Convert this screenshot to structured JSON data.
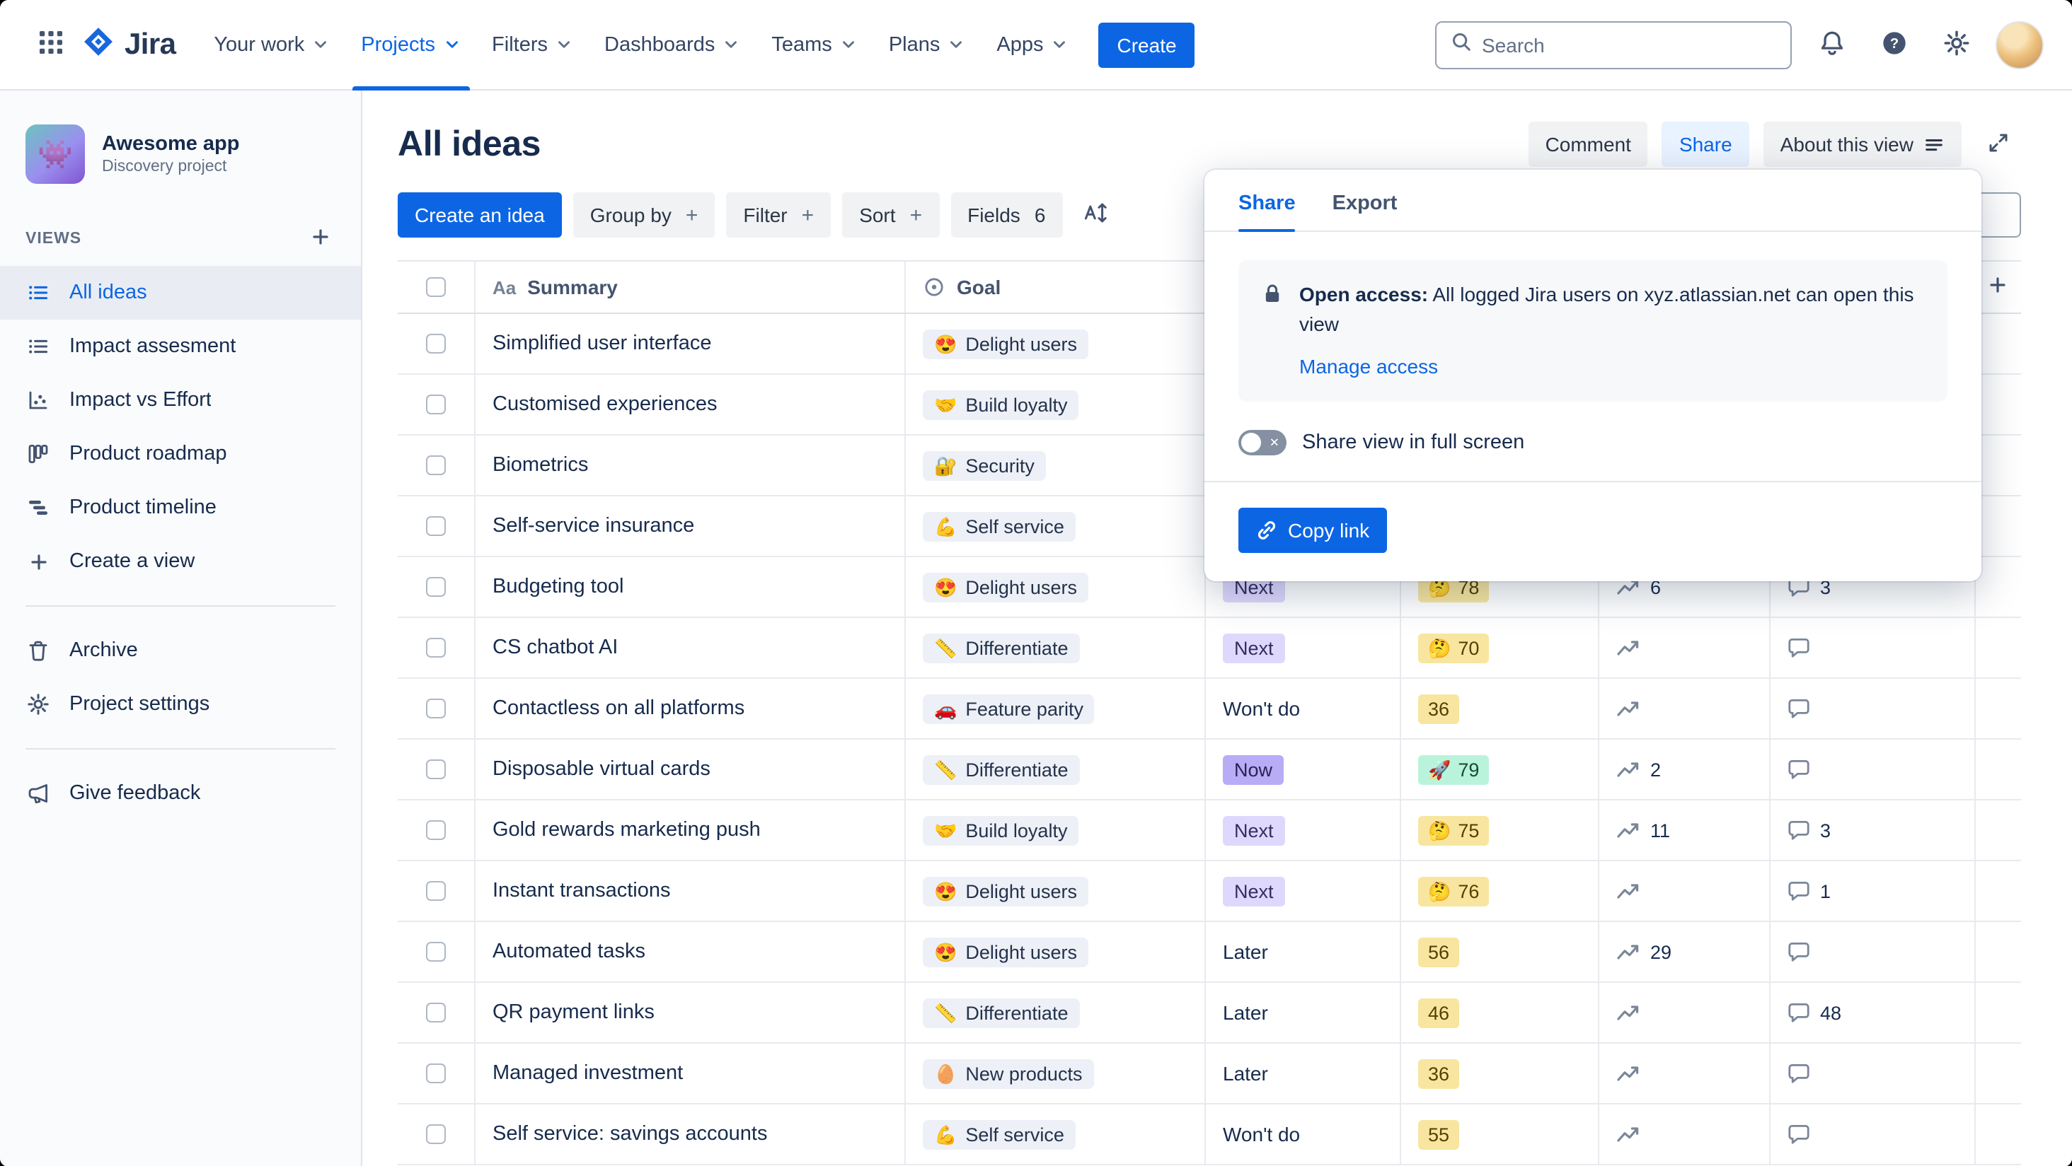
{
  "colors": {
    "brand_blue": "#0C66E4",
    "selected_view_bg": "#E9EDF3",
    "status_next_bg": "#DFD8FD",
    "status_now_bg": "#B8ACF6",
    "impact_yellow_bg": "#F8E6A0",
    "impact_green_bg": "#BAF3DB"
  },
  "nav": {
    "logo_text": "Jira",
    "items": [
      "Your work",
      "Projects",
      "Filters",
      "Dashboards",
      "Teams",
      "Plans",
      "Apps"
    ],
    "active_item": "Projects",
    "create_label": "Create",
    "search_placeholder": "Search"
  },
  "sidebar": {
    "project_name": "Awesome app",
    "project_type": "Discovery project",
    "project_emoji": "👾",
    "views_label": "VIEWS",
    "views": [
      {
        "label": "All ideas",
        "icon": "list",
        "selected": true
      },
      {
        "label": "Impact assesment",
        "icon": "list"
      },
      {
        "label": "Impact vs Effort",
        "icon": "scatter"
      },
      {
        "label": "Product roadmap",
        "icon": "board"
      },
      {
        "label": "Product timeline",
        "icon": "timeline"
      },
      {
        "label": "Create a view",
        "icon": "plus"
      }
    ],
    "tools": [
      {
        "label": "Archive",
        "icon": "trash"
      },
      {
        "label": "Project settings",
        "icon": "gear"
      }
    ],
    "footer": [
      {
        "label": "Give feedback",
        "icon": "megaphone"
      }
    ]
  },
  "page": {
    "title": "All ideas",
    "comment_label": "Comment",
    "share_label": "Share",
    "about_label": "About this view"
  },
  "toolbar": {
    "create_idea": "Create an idea",
    "group_by": "Group by",
    "filter": "Filter",
    "sort": "Sort",
    "fields": "Fields",
    "fields_count": "6",
    "plus": "+"
  },
  "share_popup": {
    "tabs": [
      "Share",
      "Export"
    ],
    "active_tab": "Share",
    "open_access_title": "Open access:",
    "open_access_text": "All logged Jira users on xyz.atlassian.net can open this view",
    "manage_access_label": "Manage access",
    "fullscreen_toggle_label": "Share view in full screen",
    "toggle_state": "off",
    "copy_link_label": "Copy link"
  },
  "table": {
    "summary_icon": "Aa",
    "columns": [
      {
        "label": "Summary"
      },
      {
        "label": "Goal"
      }
    ],
    "rows": [
      {
        "summary": "Simplified user interface",
        "goal_emoji": "😍",
        "goal": "Delight users",
        "metrics": false
      },
      {
        "summary": "Customised experiences",
        "goal_emoji": "🤝",
        "goal": "Build loyalty",
        "metrics": false
      },
      {
        "summary": "Biometrics",
        "goal_emoji": "🔐",
        "goal": "Security",
        "metrics": false
      },
      {
        "summary": "Self-service insurance",
        "goal_emoji": "💪",
        "goal": "Self service",
        "metrics": false
      },
      {
        "summary": "Budgeting tool",
        "goal_emoji": "😍",
        "goal": "Delight users",
        "status": "Next",
        "status_variant": "lilac",
        "impact": "78",
        "impact_emoji": "🤔",
        "impact_variant": "yellow",
        "trend": "6",
        "comments": "3",
        "metrics": true
      },
      {
        "summary": "CS chatbot AI",
        "goal_emoji": "📏",
        "goal": "Differentiate",
        "status": "Next",
        "status_variant": "lilac",
        "impact": "70",
        "impact_emoji": "🤔",
        "impact_variant": "yellow",
        "trend": "",
        "comments": "",
        "metrics": true
      },
      {
        "summary": "Contactless on all platforms",
        "goal_emoji": "🚗",
        "goal": "Feature parity",
        "status": "Won't do",
        "status_variant": "plain",
        "impact": "36",
        "impact_variant": "yellow",
        "trend": "",
        "comments": "",
        "metrics": true
      },
      {
        "summary": "Disposable virtual cards",
        "goal_emoji": "📏",
        "goal": "Differentiate",
        "status": "Now",
        "status_variant": "purple",
        "impact": "79",
        "impact_emoji": "🚀",
        "impact_variant": "green",
        "trend": "2",
        "comments": "",
        "metrics": true
      },
      {
        "summary": "Gold rewards marketing push",
        "goal_emoji": "🤝",
        "goal": "Build loyalty",
        "status": "Next",
        "status_variant": "lilac",
        "impact": "75",
        "impact_emoji": "🤔",
        "impact_variant": "yellow",
        "trend": "11",
        "comments": "3",
        "metrics": true
      },
      {
        "summary": "Instant transactions",
        "goal_emoji": "😍",
        "goal": "Delight users",
        "status": "Next",
        "status_variant": "lilac",
        "impact": "76",
        "impact_emoji": "🤔",
        "impact_variant": "yellow",
        "trend": "",
        "comments": "1",
        "metrics": true
      },
      {
        "summary": "Automated tasks",
        "goal_emoji": "😍",
        "goal": "Delight users",
        "status": "Later",
        "status_variant": "plain",
        "impact": "56",
        "impact_variant": "yellow",
        "trend": "29",
        "comments": "",
        "metrics": true
      },
      {
        "summary": "QR payment links",
        "goal_emoji": "📏",
        "goal": "Differentiate",
        "status": "Later",
        "status_variant": "plain",
        "impact": "46",
        "impact_variant": "yellow",
        "trend": "",
        "comments": "48",
        "metrics": true
      },
      {
        "summary": "Managed investment",
        "goal_emoji": "🥚",
        "goal": "New products",
        "status": "Later",
        "status_variant": "plain",
        "impact": "36",
        "impact_variant": "yellow",
        "trend": "",
        "comments": "",
        "metrics": true
      },
      {
        "summary": "Self service: savings accounts",
        "goal_emoji": "💪",
        "goal": "Self service",
        "status": "Won't do",
        "status_variant": "plain",
        "impact": "55",
        "impact_variant": "yellow",
        "trend": "",
        "comments": "",
        "metrics": true
      }
    ]
  }
}
